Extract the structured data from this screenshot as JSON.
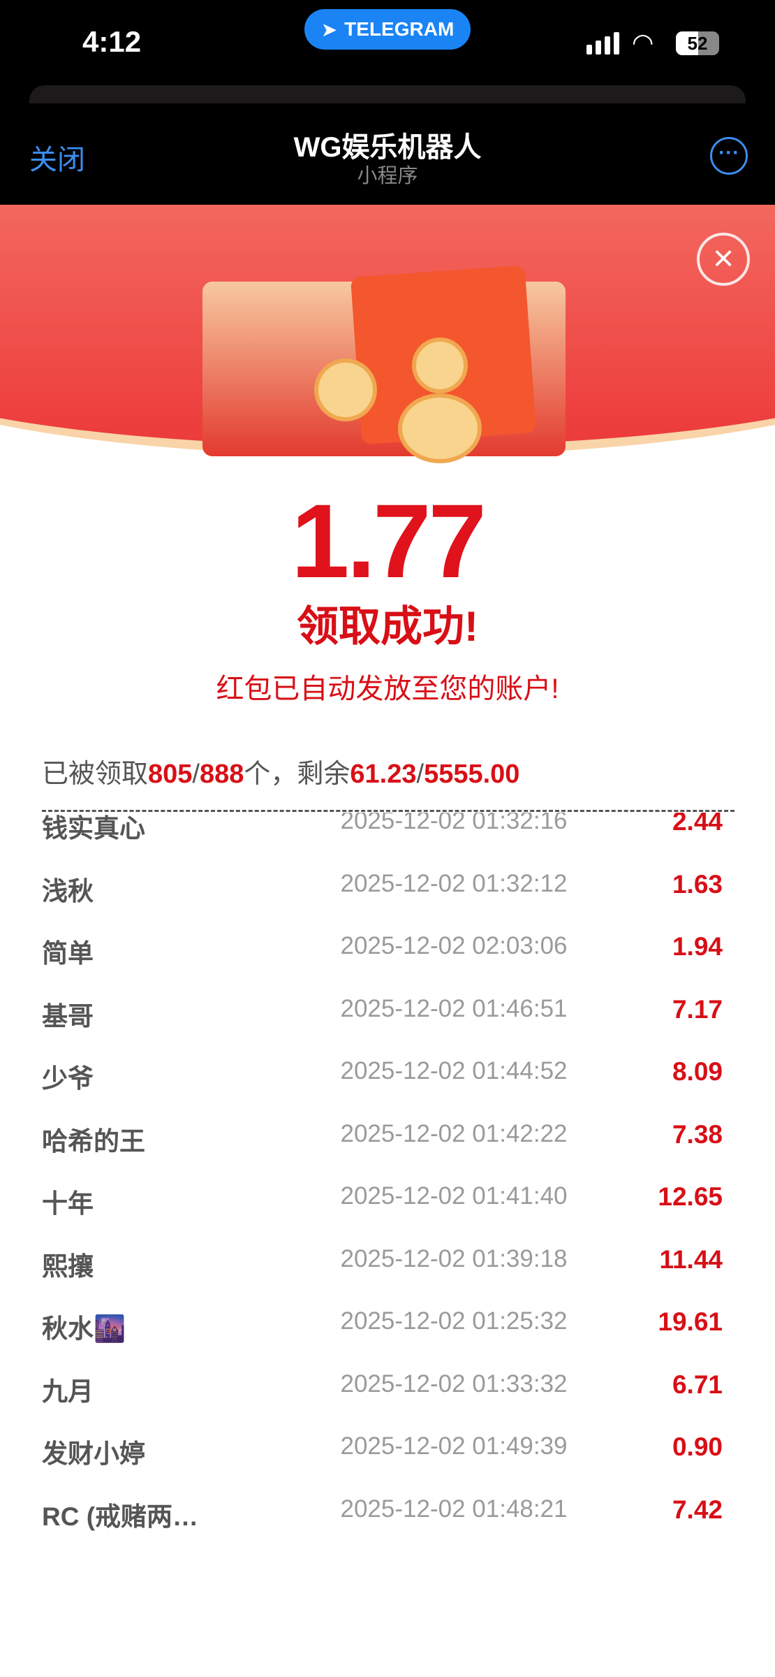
{
  "status_bar": {
    "time": "4:12",
    "app_pill": "TELEGRAM",
    "battery": "52"
  },
  "nav": {
    "close": "关闭",
    "title": "WG娱乐机器人",
    "subtitle": "小程序",
    "more_icon": "more-icon"
  },
  "result": {
    "amount": "1.77",
    "status": "领取成功!",
    "note": "红包已自动发放至您的账户!"
  },
  "summary": {
    "prefix": "已被领取",
    "claimed": "805",
    "sep1": "/",
    "total": "888",
    "mid": "个，剩余",
    "remaining": "61.23",
    "sep2": "/",
    "total_amount": "5555.00"
  },
  "colors": {
    "accent": "#d80f16",
    "link": "#3b8ef0"
  },
  "records": [
    {
      "name": "钱实真心",
      "time": "2025-12-02 01:32:16",
      "amount": "2.44"
    },
    {
      "name": "浅秋",
      "time": "2025-12-02 01:32:12",
      "amount": "1.63"
    },
    {
      "name": "简单",
      "time": "2025-12-02 02:03:06",
      "amount": "1.94"
    },
    {
      "name": "基哥",
      "time": "2025-12-02 01:46:51",
      "amount": "7.17"
    },
    {
      "name": "少爷",
      "time": "2025-12-02 01:44:52",
      "amount": "8.09"
    },
    {
      "name": "哈希的王",
      "time": "2025-12-02 01:42:22",
      "amount": "7.38"
    },
    {
      "name": "十年",
      "time": "2025-12-02 01:41:40",
      "amount": "12.65"
    },
    {
      "name": "熙攘",
      "time": "2025-12-02 01:39:18",
      "amount": "11.44"
    },
    {
      "name": "秋水🌆",
      "time": "2025-12-02 01:25:32",
      "amount": "19.61"
    },
    {
      "name": "九月",
      "time": "2025-12-02 01:33:32",
      "amount": "6.71"
    },
    {
      "name": "发财小婷",
      "time": "2025-12-02 01:49:39",
      "amount": "0.90"
    },
    {
      "name": "RC (戒赌两…",
      "time": "2025-12-02 01:48:21",
      "amount": "7.42"
    }
  ]
}
